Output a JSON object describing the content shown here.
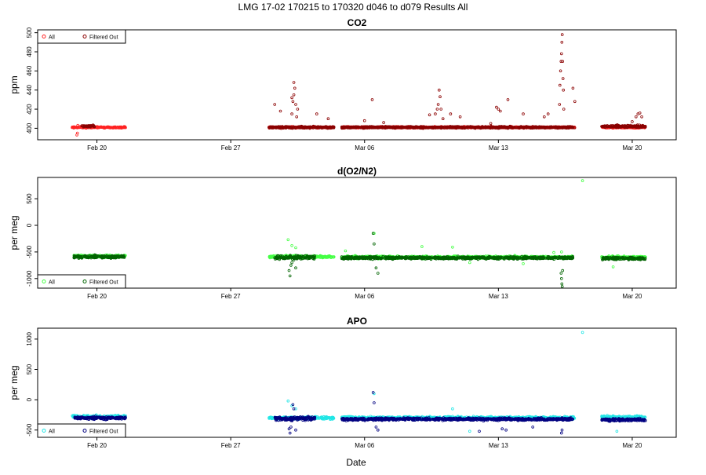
{
  "main_title": "LMG   17-02    170215 to 170320    d046 to d079   Results All",
  "chart_data": [
    {
      "type": "scatter",
      "title": "CO2",
      "xlabel": "",
      "ylabel": "ppm",
      "x_ticks": [
        "Feb 20",
        "Feb 27",
        "Mar 06",
        "Mar 13",
        "Mar 20"
      ],
      "y_ticks": [
        400,
        420,
        440,
        460,
        480,
        500
      ],
      "ylim": [
        388,
        503
      ],
      "legend": {
        "position": "top-left",
        "entries": [
          "All",
          "Filtered Out"
        ]
      },
      "series": [
        {
          "name": "All",
          "color": "#ff2222",
          "segments": [
            {
              "start": 18.7,
              "end": 21.5,
              "base": 401,
              "noise": 1.2
            },
            {
              "start": 29.0,
              "end": 32.4,
              "base": 401,
              "noise": 1.2
            },
            {
              "start": 32.8,
              "end": 45.0,
              "base": 401,
              "noise": 1.2
            },
            {
              "start": 46.4,
              "end": 48.7,
              "base": 401,
              "noise": 1.2
            }
          ],
          "points": [
            [
              18.95,
              393
            ],
            [
              18.98,
              395
            ],
            [
              19.0,
              403
            ]
          ]
        },
        {
          "name": "Filtered Out",
          "color": "#8b0000",
          "segments": [
            {
              "start": 19.2,
              "end": 19.9,
              "base": 402,
              "noise": 2
            },
            {
              "start": 29.0,
              "end": 32.4,
              "base": 401,
              "noise": 1.5
            },
            {
              "start": 32.8,
              "end": 45.0,
              "base": 401,
              "noise": 1.5
            },
            {
              "start": 46.4,
              "end": 48.7,
              "base": 402,
              "noise": 2
            }
          ],
          "points": [
            [
              30.2,
              415
            ],
            [
              30.25,
              428
            ],
            [
              30.3,
              448
            ],
            [
              30.35,
              442
            ],
            [
              30.4,
              425
            ],
            [
              30.45,
              412
            ],
            [
              30.5,
              420
            ],
            [
              30.3,
              435
            ],
            [
              30.2,
              432
            ],
            [
              29.3,
              425
            ],
            [
              29.6,
              418
            ],
            [
              31.5,
              415
            ],
            [
              32.1,
              410
            ],
            [
              34.4,
              430
            ],
            [
              34.0,
              408
            ],
            [
              35.0,
              406
            ],
            [
              37.4,
              414
            ],
            [
              37.7,
              415
            ],
            [
              37.8,
              420
            ],
            [
              37.85,
              425
            ],
            [
              37.9,
              440
            ],
            [
              37.95,
              433
            ],
            [
              38.0,
              420
            ],
            [
              38.1,
              410
            ],
            [
              38.5,
              415
            ],
            [
              39.0,
              412
            ],
            [
              40.6,
              405
            ],
            [
              40.9,
              422
            ],
            [
              41.0,
              420
            ],
            [
              41.1,
              418
            ],
            [
              41.5,
              430
            ],
            [
              42.3,
              415
            ],
            [
              43.4,
              412
            ],
            [
              43.6,
              415
            ],
            [
              44.2,
              425
            ],
            [
              44.22,
              445
            ],
            [
              44.25,
              460
            ],
            [
              44.28,
              470
            ],
            [
              44.3,
              478
            ],
            [
              44.32,
              490
            ],
            [
              44.34,
              498
            ],
            [
              44.36,
              470
            ],
            [
              44.38,
              452
            ],
            [
              44.4,
              440
            ],
            [
              44.42,
              420
            ],
            [
              44.9,
              442
            ],
            [
              45.0,
              428
            ],
            [
              48.0,
              407
            ],
            [
              48.2,
              412
            ],
            [
              48.3,
              415
            ],
            [
              48.4,
              416
            ],
            [
              48.5,
              412
            ]
          ]
        }
      ]
    },
    {
      "type": "scatter",
      "title": "d(O2/N2)",
      "xlabel": "",
      "ylabel": "per meg",
      "x_ticks": [
        "Feb 20",
        "Feb 27",
        "Mar 06",
        "Mar 13",
        "Mar 20"
      ],
      "y_ticks": [
        -1000,
        -500,
        0,
        500
      ],
      "ylim": [
        -1180,
        900
      ],
      "legend": {
        "position": "bottom-left",
        "entries": [
          "All",
          "Filtered Out"
        ]
      },
      "series": [
        {
          "name": "All",
          "color": "#44ff44",
          "segments": [
            {
              "start": 18.7,
              "end": 21.5,
              "base": -580,
              "noise": 40
            },
            {
              "start": 29.0,
              "end": 32.4,
              "base": -590,
              "noise": 40
            },
            {
              "start": 32.8,
              "end": 45.0,
              "base": -600,
              "noise": 40
            },
            {
              "start": 46.4,
              "end": 48.7,
              "base": -600,
              "noise": 40
            }
          ],
          "points": [
            [
              30.0,
              -270
            ],
            [
              30.2,
              -380
            ],
            [
              30.4,
              -420
            ],
            [
              33.0,
              -480
            ],
            [
              34.5,
              -150
            ],
            [
              37.0,
              -400
            ],
            [
              38.6,
              -410
            ],
            [
              39.5,
              -700
            ],
            [
              42.3,
              -720
            ],
            [
              43.9,
              -510
            ],
            [
              44.3,
              -500
            ],
            [
              45.4,
              840
            ],
            [
              47.0,
              -780
            ]
          ]
        },
        {
          "name": "Filtered Out",
          "color": "#006400",
          "segments": [
            {
              "start": 18.8,
              "end": 21.5,
              "base": -590,
              "noise": 45
            },
            {
              "start": 29.3,
              "end": 31.4,
              "base": -600,
              "noise": 60
            },
            {
              "start": 32.8,
              "end": 44.9,
              "base": -610,
              "noise": 40
            },
            {
              "start": 46.4,
              "end": 48.7,
              "base": -620,
              "noise": 40
            }
          ],
          "points": [
            [
              30.05,
              -850
            ],
            [
              30.1,
              -950
            ],
            [
              30.15,
              -750
            ],
            [
              30.2,
              -700
            ],
            [
              30.3,
              -650
            ],
            [
              30.4,
              -800
            ],
            [
              34.45,
              -150
            ],
            [
              34.5,
              -350
            ],
            [
              34.6,
              -800
            ],
            [
              34.7,
              -900
            ],
            [
              44.28,
              -900
            ],
            [
              44.3,
              -1000
            ],
            [
              44.32,
              -1100
            ],
            [
              44.34,
              -1150
            ],
            [
              44.36,
              -850
            ]
          ]
        }
      ]
    },
    {
      "type": "scatter",
      "title": "APO",
      "xlabel": "Date",
      "ylabel": "per meg",
      "x_ticks": [
        "Feb 20",
        "Feb 27",
        "Mar 06",
        "Mar 13",
        "Mar 20"
      ],
      "y_ticks": [
        -500,
        0,
        500,
        1000
      ],
      "ylim": [
        -620,
        1180
      ],
      "legend": {
        "position": "bottom-left",
        "entries": [
          "All",
          "Filtered Out"
        ]
      },
      "series": [
        {
          "name": "All",
          "color": "#22e6e6",
          "segments": [
            {
              "start": 18.7,
              "end": 21.5,
              "base": -280,
              "noise": 40
            },
            {
              "start": 29.0,
              "end": 32.4,
              "base": -300,
              "noise": 40
            },
            {
              "start": 32.8,
              "end": 45.0,
              "base": -300,
              "noise": 40
            },
            {
              "start": 46.4,
              "end": 48.7,
              "base": -290,
              "noise": 40
            }
          ],
          "points": [
            [
              30.0,
              -20
            ],
            [
              30.2,
              -100
            ],
            [
              30.4,
              -150
            ],
            [
              34.5,
              100
            ],
            [
              38.6,
              -150
            ],
            [
              45.4,
              1110
            ],
            [
              47.2,
              -520
            ],
            [
              39.5,
              -520
            ]
          ]
        },
        {
          "name": "Filtered Out",
          "color": "#000080",
          "segments": [
            {
              "start": 18.8,
              "end": 21.5,
              "base": -300,
              "noise": 40
            },
            {
              "start": 29.3,
              "end": 31.4,
              "base": -310,
              "noise": 55
            },
            {
              "start": 32.8,
              "end": 44.9,
              "base": -320,
              "noise": 35
            },
            {
              "start": 46.4,
              "end": 48.7,
              "base": -330,
              "noise": 35
            }
          ],
          "points": [
            [
              30.05,
              -480
            ],
            [
              30.1,
              -550
            ],
            [
              30.15,
              -450
            ],
            [
              30.3,
              -150
            ],
            [
              30.25,
              -80
            ],
            [
              30.4,
              -500
            ],
            [
              34.45,
              120
            ],
            [
              34.5,
              -50
            ],
            [
              34.6,
              -450
            ],
            [
              34.7,
              -500
            ],
            [
              41.2,
              -480
            ],
            [
              41.4,
              -500
            ],
            [
              44.3,
              -550
            ],
            [
              44.33,
              -500
            ],
            [
              40.0,
              -520
            ],
            [
              42.8,
              -450
            ]
          ]
        }
      ]
    }
  ]
}
